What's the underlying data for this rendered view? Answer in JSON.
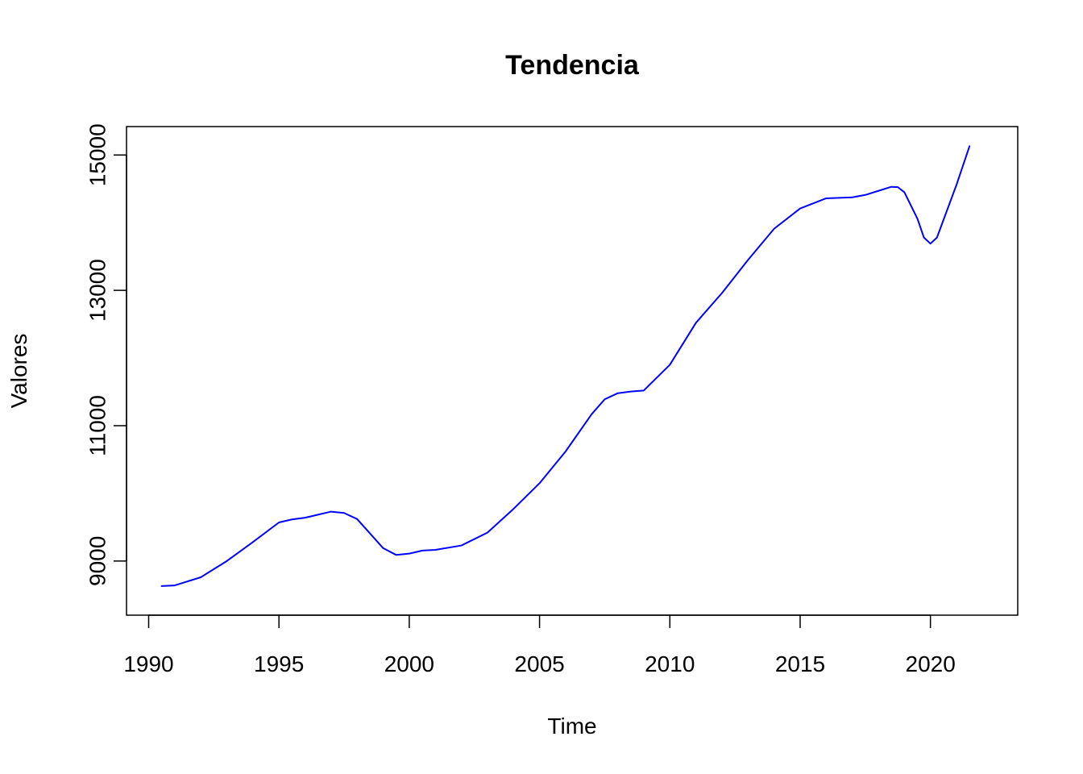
{
  "chart_data": {
    "type": "line",
    "title": "Tendencia",
    "xlabel": "Time",
    "ylabel": "Valores",
    "xlim": [
      1989.15,
      2023.35
    ],
    "ylim": [
      8200,
      15420
    ],
    "xticks": [
      1990,
      1995,
      2000,
      2005,
      2010,
      2015,
      2020
    ],
    "yticks": [
      9000,
      11000,
      13000,
      15000
    ],
    "grid": false,
    "legend": "none",
    "series": [
      {
        "color": "#0000ff",
        "x": [
          1990.5,
          1991.0,
          1992.0,
          1993.0,
          1994.0,
          1995.0,
          1995.5,
          1996.0,
          1997.0,
          1997.5,
          1998.0,
          1999.0,
          1999.5,
          2000.0,
          2000.5,
          2001.0,
          2002.0,
          2003.0,
          2004.0,
          2005.0,
          2006.0,
          2007.0,
          2007.5,
          2008.0,
          2008.5,
          2009.0,
          2010.0,
          2011.0,
          2012.0,
          2013.0,
          2014.0,
          2015.0,
          2016.0,
          2017.0,
          2017.5,
          2018.0,
          2018.5,
          2018.75,
          2019.0,
          2019.5,
          2019.75,
          2020.0,
          2020.25,
          2021.0,
          2021.5
        ],
        "y": [
          8630,
          8640,
          8760,
          9000,
          9280,
          9570,
          9615,
          9640,
          9730,
          9710,
          9620,
          9190,
          9090,
          9110,
          9155,
          9165,
          9230,
          9420,
          9770,
          10150,
          10620,
          11170,
          11390,
          11480,
          11505,
          11520,
          11900,
          12520,
          12960,
          13450,
          13910,
          14210,
          14360,
          14375,
          14410,
          14470,
          14530,
          14525,
          14450,
          14060,
          13780,
          13690,
          13780,
          14560,
          15130
        ]
      }
    ]
  }
}
